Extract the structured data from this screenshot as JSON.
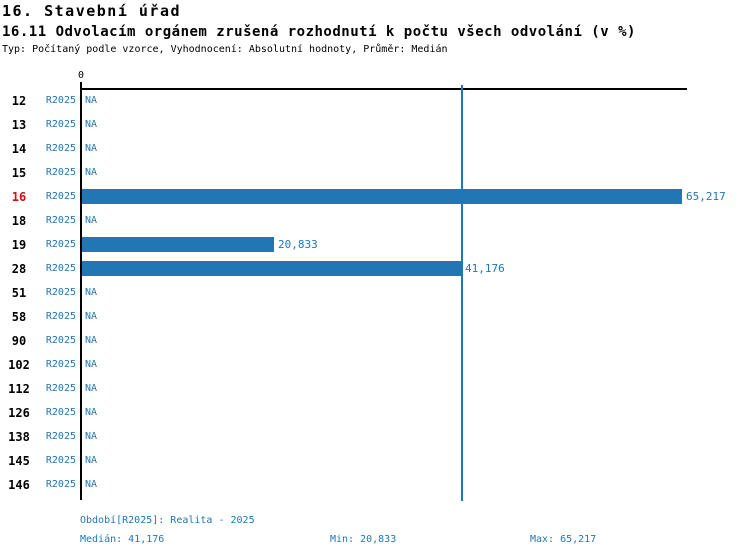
{
  "header": {
    "title": "16. Stavební úřad",
    "subtitle": "16.11 Odvolacím orgánem zrušená rozhodnutí k počtu všech odvolání (v %)",
    "meta": "Typ: Počítaný podle vzorce, Vyhodnocení: Absolutní hodnoty, Průměr: Medián"
  },
  "chart_data": {
    "type": "bar",
    "orientation": "horizontal",
    "title": "16.11 Odvolacím orgánem zrušená rozhodnutí k počtu všech odvolání (v %)",
    "categories": [
      "12",
      "13",
      "14",
      "15",
      "16",
      "18",
      "19",
      "28",
      "51",
      "58",
      "90",
      "102",
      "112",
      "126",
      "138",
      "145",
      "146"
    ],
    "series": [
      {
        "name": "R2025",
        "values": [
          null,
          null,
          null,
          null,
          65.217,
          null,
          20.833,
          41.176,
          null,
          null,
          null,
          null,
          null,
          null,
          null,
          null,
          null
        ],
        "value_labels": [
          "NA",
          "NA",
          "NA",
          "NA",
          "65,217",
          "NA",
          "20,833",
          "41,176",
          "NA",
          "NA",
          "NA",
          "NA",
          "NA",
          "NA",
          "NA",
          "NA",
          "NA"
        ]
      }
    ],
    "na_label": "NA",
    "xlim": [
      0,
      65.217
    ],
    "axis_zero_label": "0",
    "median_line_value": 41.176,
    "highlighted_category": "16",
    "legend_position": "none",
    "grid": false
  },
  "footer": {
    "period_label": "Období[R2025]: Realita - 2025",
    "median_label": "Medián: 41,176",
    "min_label": "Min: 20,833",
    "max_label": "Max: 65,217"
  },
  "colors": {
    "bar_blue": "#2077B4",
    "text_blue": "#2077B4",
    "highlight_red": "#CC1111",
    "axis_black": "#000000"
  },
  "stats": {
    "median": 41.176,
    "min": 20.833,
    "max": 65.217
  }
}
